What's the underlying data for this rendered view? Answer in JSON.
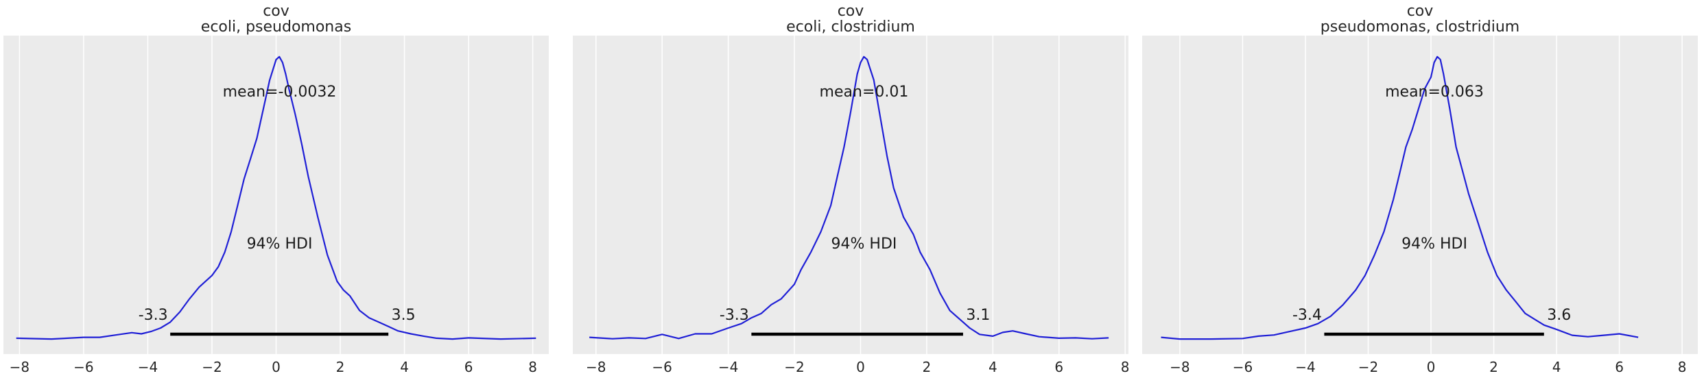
{
  "chart_data": [
    {
      "type": "area",
      "title": "cov",
      "subtitle": "ecoli, pseudomonas",
      "xlim": [
        -8.5,
        8.5
      ],
      "xticks": [
        -8,
        -6,
        -4,
        -2,
        0,
        2,
        4,
        6,
        8
      ],
      "mean_label": "mean=-0.0032",
      "hdi_label": "94% HDI",
      "hdi": [
        -3.3,
        3.5
      ],
      "hdi_low_label": "-3.3",
      "hdi_high_label": "3.5",
      "grid": true,
      "line_color": "#1f1fd6",
      "density": {
        "x": [
          -8.1,
          -7.0,
          -6.0,
          -5.5,
          -5.0,
          -4.5,
          -4.2,
          -3.9,
          -3.6,
          -3.3,
          -3.0,
          -2.7,
          -2.4,
          -2.2,
          -2.0,
          -1.8,
          -1.6,
          -1.4,
          -1.2,
          -1.0,
          -0.8,
          -0.6,
          -0.4,
          -0.2,
          0.0,
          0.1,
          0.2,
          0.3,
          0.4,
          0.6,
          0.8,
          1.0,
          1.3,
          1.6,
          1.9,
          2.1,
          2.3,
          2.6,
          2.9,
          3.2,
          3.5,
          3.8,
          4.2,
          4.6,
          5.0,
          5.5,
          6.0,
          7.0,
          8.1
        ],
        "y": [
          0.005,
          0.002,
          0.008,
          0.008,
          0.016,
          0.024,
          0.02,
          0.028,
          0.04,
          0.06,
          0.095,
          0.14,
          0.18,
          0.2,
          0.22,
          0.25,
          0.3,
          0.37,
          0.46,
          0.55,
          0.62,
          0.69,
          0.79,
          0.89,
          0.96,
          0.97,
          0.95,
          0.91,
          0.86,
          0.77,
          0.67,
          0.56,
          0.42,
          0.29,
          0.2,
          0.17,
          0.15,
          0.1,
          0.075,
          0.06,
          0.045,
          0.03,
          0.02,
          0.012,
          0.005,
          0.002,
          0.006,
          0.002,
          0.005
        ]
      }
    },
    {
      "type": "area",
      "title": "cov",
      "subtitle": "ecoli, clostridium",
      "xlim": [
        -8.7,
        8.1
      ],
      "xticks": [
        -8,
        -6,
        -4,
        -2,
        0,
        2,
        4,
        6,
        8
      ],
      "mean_label": "mean=0.01",
      "hdi_label": "94% HDI",
      "hdi": [
        -3.3,
        3.1
      ],
      "hdi_low_label": "-3.3",
      "hdi_high_label": "3.1",
      "grid": true,
      "line_color": "#1f1fd6",
      "density": {
        "x": [
          -8.2,
          -7.5,
          -7.0,
          -6.5,
          -6.0,
          -5.5,
          -5.0,
          -4.5,
          -4.0,
          -3.6,
          -3.3,
          -3.0,
          -2.7,
          -2.4,
          -2.0,
          -1.8,
          -1.5,
          -1.2,
          -0.9,
          -0.7,
          -0.5,
          -0.3,
          -0.1,
          0.0,
          0.1,
          0.2,
          0.4,
          0.6,
          0.8,
          1.0,
          1.3,
          1.6,
          1.8,
          2.1,
          2.4,
          2.7,
          3.0,
          3.3,
          3.6,
          4.0,
          4.3,
          4.6,
          5.0,
          5.4,
          6.0,
          6.5,
          7.0,
          7.5
        ],
        "y": [
          0.008,
          0.003,
          0.006,
          0.004,
          0.018,
          0.004,
          0.02,
          0.02,
          0.04,
          0.055,
          0.075,
          0.09,
          0.12,
          0.14,
          0.19,
          0.24,
          0.3,
          0.37,
          0.46,
          0.56,
          0.66,
          0.78,
          0.91,
          0.95,
          0.97,
          0.96,
          0.89,
          0.76,
          0.63,
          0.52,
          0.42,
          0.36,
          0.3,
          0.24,
          0.16,
          0.1,
          0.07,
          0.04,
          0.018,
          0.012,
          0.025,
          0.03,
          0.02,
          0.01,
          0.005,
          0.006,
          0.003,
          0.006
        ]
      }
    },
    {
      "type": "area",
      "title": "cov",
      "subtitle": "pseudomonas, clostridium",
      "xlim": [
        -9.2,
        8.5
      ],
      "xticks": [
        -8,
        -6,
        -4,
        -2,
        0,
        2,
        4,
        6,
        8
      ],
      "mean_label": "mean=0.063",
      "hdi_label": "94% HDI",
      "hdi": [
        -3.4,
        3.6
      ],
      "hdi_low_label": "-3.4",
      "hdi_high_label": "3.6",
      "grid": true,
      "line_color": "#1f1fd6",
      "density": {
        "x": [
          -8.6,
          -8.0,
          -7.0,
          -6.0,
          -5.5,
          -5.0,
          -4.5,
          -4.0,
          -3.6,
          -3.2,
          -2.8,
          -2.4,
          -2.1,
          -1.8,
          -1.5,
          -1.2,
          -1.0,
          -0.8,
          -0.6,
          -0.4,
          -0.2,
          0.0,
          0.1,
          0.2,
          0.3,
          0.4,
          0.6,
          0.8,
          1.0,
          1.2,
          1.5,
          1.8,
          2.1,
          2.4,
          2.7,
          3.0,
          3.3,
          3.6,
          4.0,
          4.5,
          5.0,
          5.5,
          6.0,
          6.6
        ],
        "y": [
          0.008,
          0.002,
          0.002,
          0.004,
          0.012,
          0.016,
          0.028,
          0.04,
          0.055,
          0.08,
          0.12,
          0.17,
          0.22,
          0.29,
          0.37,
          0.48,
          0.57,
          0.66,
          0.72,
          0.79,
          0.86,
          0.9,
          0.95,
          0.97,
          0.96,
          0.91,
          0.79,
          0.66,
          0.58,
          0.5,
          0.4,
          0.3,
          0.22,
          0.17,
          0.13,
          0.09,
          0.07,
          0.05,
          0.035,
          0.015,
          0.01,
          0.015,
          0.02,
          0.008
        ]
      }
    }
  ]
}
